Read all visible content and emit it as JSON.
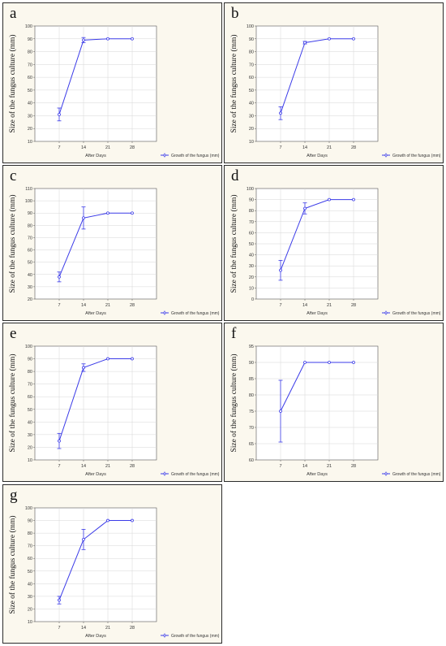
{
  "chart_data": [
    {
      "letter": "a",
      "type": "line",
      "xlabel": "After Days",
      "ylabel": "Size of the fungus culture (mm)",
      "ylim": [
        10,
        100
      ],
      "yticks": [
        10,
        20,
        30,
        40,
        50,
        60,
        70,
        80,
        90,
        100
      ],
      "categories": [
        "7",
        "14",
        "21",
        "28"
      ],
      "series": [
        {
          "name": "Growth of the fungus (mm)",
          "values": [
            31,
            89,
            90,
            90
          ],
          "err": [
            5,
            2,
            0,
            0
          ]
        }
      ],
      "grid": true,
      "legend": "bottom-right",
      "color": "#3b3be8"
    },
    {
      "letter": "b",
      "type": "line",
      "xlabel": "After Days",
      "ylabel": "Size of the fungus culture (mm)",
      "ylim": [
        10,
        100
      ],
      "yticks": [
        10,
        20,
        30,
        40,
        50,
        60,
        70,
        80,
        90,
        100
      ],
      "categories": [
        "7",
        "14",
        "21",
        "28"
      ],
      "series": [
        {
          "name": "Growth of the fungus (mm)",
          "values": [
            32,
            87,
            90,
            90
          ],
          "err": [
            5,
            1,
            0,
            0
          ]
        }
      ],
      "grid": true,
      "legend": "bottom-right",
      "color": "#3b3be8"
    },
    {
      "letter": "c",
      "type": "line",
      "xlabel": "After Days",
      "ylabel": "Size of the fungus culture (mm)",
      "ylim": [
        20,
        110
      ],
      "yticks": [
        20,
        30,
        40,
        50,
        60,
        70,
        80,
        90,
        100,
        110
      ],
      "categories": [
        "7",
        "14",
        "21",
        "28"
      ],
      "series": [
        {
          "name": "Growth of the fungus (mm)",
          "values": [
            38,
            86,
            90,
            90
          ],
          "err": [
            4,
            9,
            0,
            0
          ]
        }
      ],
      "grid": true,
      "legend": "bottom-right",
      "color": "#3b3be8"
    },
    {
      "letter": "d",
      "type": "line",
      "xlabel": "After Days",
      "ylabel": "Size of the fungus culture (mm)",
      "ylim": [
        0,
        100
      ],
      "yticks": [
        0,
        10,
        20,
        30,
        40,
        50,
        60,
        70,
        80,
        90,
        100
      ],
      "categories": [
        "7",
        "14",
        "21",
        "28"
      ],
      "series": [
        {
          "name": "Growth of the fungus (mm)",
          "values": [
            26,
            82,
            90,
            90
          ],
          "err": [
            9,
            5,
            0,
            0
          ]
        }
      ],
      "grid": true,
      "legend": "bottom-right",
      "color": "#3b3be8"
    },
    {
      "letter": "e",
      "type": "line",
      "xlabel": "After Days",
      "ylabel": "Size of the fungus culture (mm)",
      "ylim": [
        10,
        100
      ],
      "yticks": [
        10,
        20,
        30,
        40,
        50,
        60,
        70,
        80,
        90,
        100
      ],
      "categories": [
        "7",
        "14",
        "21",
        "28"
      ],
      "series": [
        {
          "name": "Growth of the fungus (mm)",
          "values": [
            25,
            83,
            90,
            90
          ],
          "err": [
            6,
            3,
            0,
            0
          ]
        }
      ],
      "grid": true,
      "legend": "bottom-right",
      "color": "#3b3be8"
    },
    {
      "letter": "f",
      "type": "line",
      "xlabel": "After Days",
      "ylabel": "Size of the fungus culture (mm)",
      "ylim": [
        60,
        95
      ],
      "yticks": [
        60,
        65,
        70,
        75,
        80,
        85,
        90,
        95
      ],
      "categories": [
        "7",
        "14",
        "21",
        "28"
      ],
      "series": [
        {
          "name": "Growth of the fungus (mm)",
          "values": [
            75,
            90,
            90,
            90
          ],
          "err": [
            9.5,
            0,
            0,
            0
          ]
        }
      ],
      "grid": true,
      "legend": "bottom-right",
      "color": "#3b3be8"
    },
    {
      "letter": "g",
      "type": "line",
      "xlabel": "After Days",
      "ylabel": "Size of the fungus culture (mm)",
      "ylim": [
        10,
        100
      ],
      "yticks": [
        10,
        20,
        30,
        40,
        50,
        60,
        70,
        80,
        90,
        100
      ],
      "categories": [
        "7",
        "14",
        "21",
        "28"
      ],
      "series": [
        {
          "name": "Growth of the fungus (mm)",
          "values": [
            27,
            75,
            90,
            90
          ],
          "err": [
            3,
            8,
            0,
            0
          ]
        }
      ],
      "grid": true,
      "legend": "bottom-right",
      "color": "#3b3be8"
    }
  ]
}
